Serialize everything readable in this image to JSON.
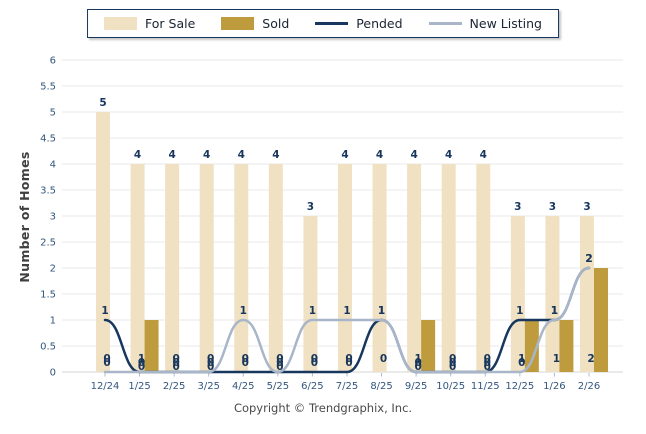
{
  "legend": {
    "items": [
      {
        "id": "for-sale",
        "label": "For Sale",
        "swatch": "bar",
        "color": "#F0E1C3"
      },
      {
        "id": "sold",
        "label": "Sold",
        "swatch": "bar",
        "color": "#BE9B3D"
      },
      {
        "id": "pended",
        "label": "Pended",
        "swatch": "line",
        "color": "#17375E"
      },
      {
        "id": "new-listing",
        "label": "New Listing",
        "swatch": "line",
        "color": "#A9B6CA"
      }
    ]
  },
  "chart_data": {
    "type": "bar",
    "subtype": "grouped bars with overlaid smoothed value lines",
    "title": "",
    "xlabel": "",
    "ylabel": "Number of Homes",
    "categories": [
      "12/24",
      "1/25",
      "2/25",
      "3/25",
      "4/25",
      "5/25",
      "6/25",
      "7/25",
      "8/25",
      "9/25",
      "10/25",
      "11/25",
      "12/25",
      "1/26",
      "2/26"
    ],
    "series": [
      {
        "name": "For Sale",
        "type": "bar",
        "color": "#F0E1C3",
        "values": [
          5,
          4,
          4,
          4,
          4,
          4,
          3,
          4,
          4,
          4,
          4,
          4,
          3,
          3,
          3
        ]
      },
      {
        "name": "Sold",
        "type": "bar",
        "color": "#BE9B3D",
        "values": [
          0,
          1,
          0,
          0,
          0,
          0,
          0,
          0,
          0,
          1,
          0,
          0,
          1,
          1,
          2
        ]
      },
      {
        "name": "Pended",
        "type": "line",
        "color": "#17375E",
        "values": [
          1,
          0,
          0,
          0,
          0,
          0,
          0,
          0,
          1,
          0,
          0,
          0,
          1,
          1,
          2
        ]
      },
      {
        "name": "New Listing",
        "type": "line",
        "color": "#A9B6CA",
        "values": [
          0,
          0,
          0,
          0,
          1,
          0,
          1,
          1,
          1,
          0,
          0,
          0,
          0,
          1,
          2
        ]
      }
    ],
    "ylim": [
      0,
      6
    ],
    "ytick_step": 0.5,
    "yticks": [
      0,
      0.5,
      1,
      1.5,
      2,
      2.5,
      3,
      3.5,
      4,
      4.5,
      5,
      5.5,
      6
    ],
    "grid": true,
    "legend_position": "top-center",
    "value_labels": true
  },
  "footer": {
    "copyright": "Copyright © Trendgraphix, Inc."
  },
  "style": {
    "grid_color": "#E9E9E9",
    "baseline_color": "#D5D5D5",
    "x_tick_color": "#AEBCCE",
    "tick_label_color": "#33567E",
    "value_label_color": "#17365D",
    "ylabel_color": "#3F3F3F",
    "copyright_color": "#4A4A4A",
    "legend_border_color": "#17375E",
    "background": "#FFFFFF"
  }
}
